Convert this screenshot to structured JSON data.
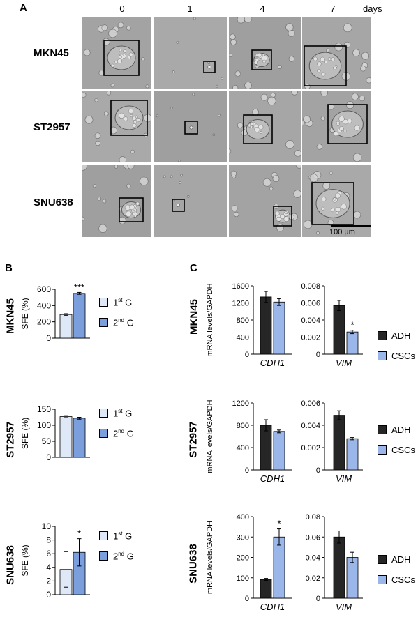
{
  "panelA": {
    "letter": "A",
    "days": [
      "0",
      "1",
      "4",
      "7"
    ],
    "days_unit": "days",
    "rows": [
      "MKN45",
      "ST2957",
      "SNU638"
    ],
    "scale_bar": "100 µm"
  },
  "panelB": {
    "letter": "B",
    "rows": [
      "MKN45",
      "ST2957",
      "SNU638"
    ],
    "legend": {
      "g1_base": "1",
      "g1_sup": "st",
      "g1_tail": " G",
      "g2_base": "2",
      "g2_sup": "nd",
      "g2_tail": " G"
    },
    "colors": {
      "g1": "#dfe8f7",
      "g2": "#7b9fdc"
    }
  },
  "panelC": {
    "letter": "C",
    "rows": [
      "MKN45",
      "ST2957",
      "SNU638"
    ],
    "legend": [
      "ADH",
      "CSCs"
    ],
    "genes": [
      "CDH1",
      "VIM"
    ],
    "colors": {
      "adh": "#262626",
      "cscs": "#9bb7ea"
    }
  },
  "chart_data": [
    {
      "id": "B-MKN45",
      "type": "bar",
      "categories": [
        "1st G",
        "2nd G"
      ],
      "values": [
        290,
        550
      ],
      "errors": [
        10,
        12
      ],
      "ylabel": "SFE (%)",
      "ylim": [
        0,
        600
      ],
      "yticks": [
        0,
        200,
        400,
        600
      ],
      "annotation": "***"
    },
    {
      "id": "B-ST2957",
      "type": "bar",
      "categories": [
        "1st G",
        "2nd G"
      ],
      "values": [
        127,
        122
      ],
      "errors": [
        3,
        3
      ],
      "ylabel": "SFE (%)",
      "ylim": [
        0,
        150
      ],
      "yticks": [
        0,
        50,
        100,
        150
      ],
      "annotation": ""
    },
    {
      "id": "B-SNU638",
      "type": "bar",
      "categories": [
        "1st G",
        "2nd G"
      ],
      "values": [
        3.7,
        6.2
      ],
      "errors": [
        2.6,
        2.0
      ],
      "ylabel": "SFE (%)",
      "ylim": [
        0,
        10
      ],
      "yticks": [
        0,
        2,
        4,
        6,
        8,
        10
      ],
      "annotation": "*"
    },
    {
      "id": "C-MKN45-CDH1",
      "type": "bar",
      "categories": [
        "ADH",
        "CSCs"
      ],
      "values": [
        1340,
        1220
      ],
      "errors": [
        130,
        80
      ],
      "xlabel": "CDH1",
      "ylabel": "mRNA levels/GAPDH",
      "ylim": [
        0,
        1600
      ],
      "yticks": [
        "0",
        "400",
        "800",
        "1200",
        "1600"
      ],
      "annotation": ""
    },
    {
      "id": "C-MKN45-VIM",
      "type": "bar",
      "categories": [
        "ADH",
        "CSCs"
      ],
      "values": [
        0.0057,
        0.0026
      ],
      "errors": [
        0.0006,
        0.0002
      ],
      "xlabel": "VIM",
      "ylim": [
        0,
        0.008
      ],
      "yticks": [
        "0",
        "0.002",
        "0.004",
        "0.006",
        "0.008"
      ],
      "annotation": "*"
    },
    {
      "id": "C-ST2957-CDH1",
      "type": "bar",
      "categories": [
        "ADH",
        "CSCs"
      ],
      "values": [
        800,
        690
      ],
      "errors": [
        100,
        25
      ],
      "xlabel": "CDH1",
      "ylabel": "mRNA levels/GAPDH",
      "ylim": [
        0,
        1200
      ],
      "yticks": [
        "0",
        "400",
        "800",
        "1200"
      ],
      "annotation": ""
    },
    {
      "id": "C-ST2957-VIM",
      "type": "bar",
      "categories": [
        "ADH",
        "CSCs"
      ],
      "values": [
        0.0049,
        0.0028
      ],
      "errors": [
        0.0004,
        0.0001
      ],
      "xlabel": "VIM",
      "ylim": [
        0,
        0.006
      ],
      "yticks": [
        "0",
        "0.002",
        "0.004",
        "0.006"
      ],
      "annotation": ""
    },
    {
      "id": "C-SNU638-CDH1",
      "type": "bar",
      "categories": [
        "ADH",
        "CSCs"
      ],
      "values": [
        92,
        300
      ],
      "errors": [
        5,
        40
      ],
      "xlabel": "CDH1",
      "ylabel": "mRNA levels/GAPDH",
      "ylim": [
        0,
        400
      ],
      "yticks": [
        "0",
        "100",
        "200",
        "300",
        "400"
      ],
      "annotation": "*"
    },
    {
      "id": "C-SNU638-VIM",
      "type": "bar",
      "categories": [
        "ADH",
        "CSCs"
      ],
      "values": [
        0.06,
        0.04
      ],
      "errors": [
        0.006,
        0.005
      ],
      "xlabel": "VIM",
      "ylim": [
        0,
        0.08
      ],
      "yticks": [
        "0",
        "0.02",
        "0.04",
        "0.06",
        "0.08"
      ],
      "annotation": ""
    }
  ]
}
